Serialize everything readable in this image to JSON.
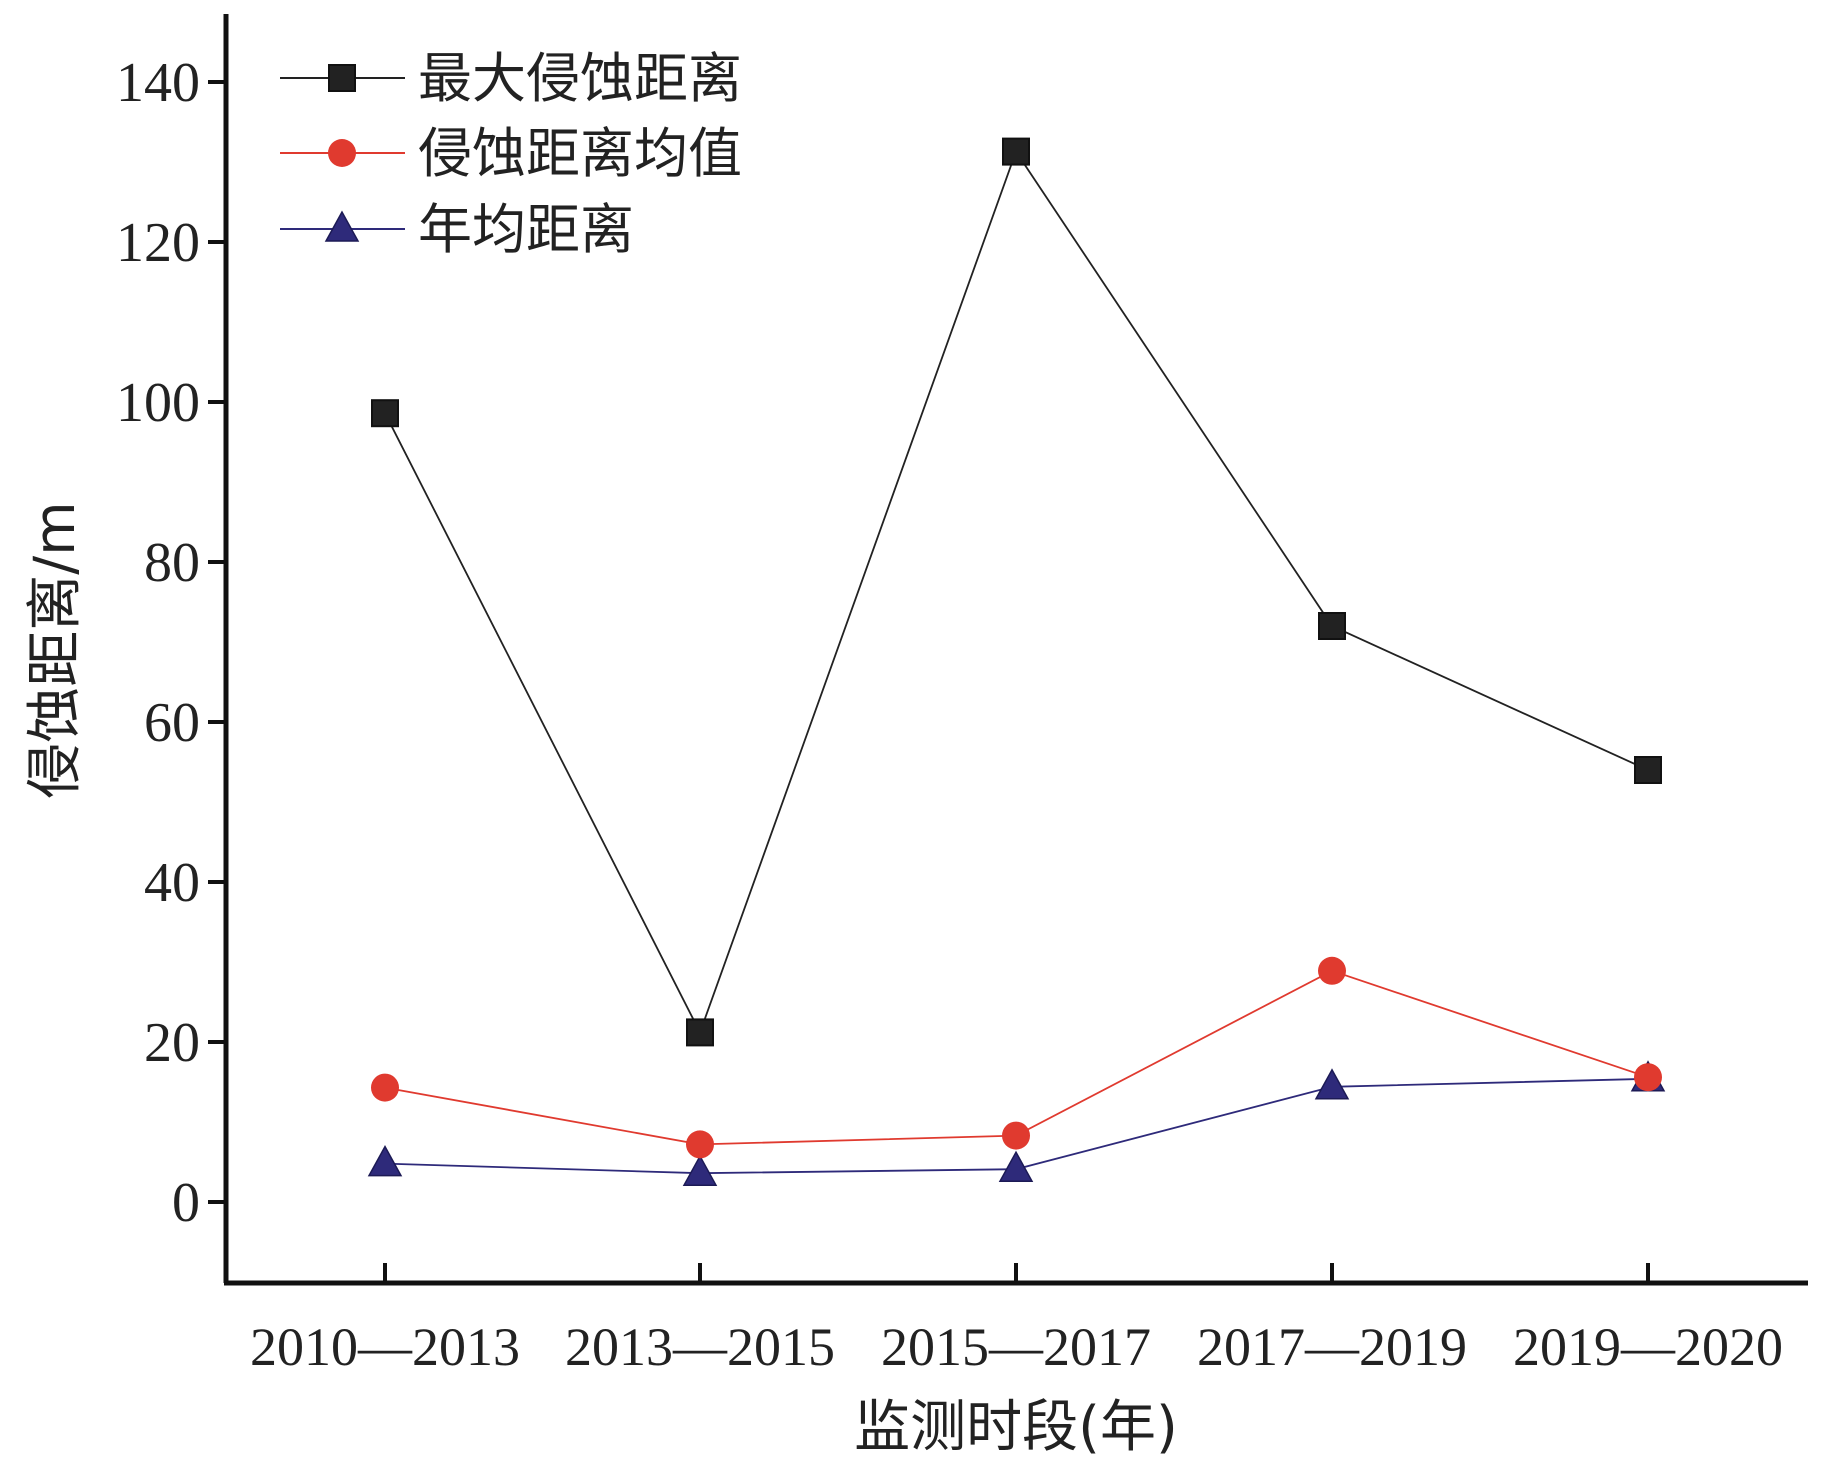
{
  "chart_data": {
    "type": "line",
    "categories": [
      "2010—2013",
      "2013—2015",
      "2015—2017",
      "2017—2019",
      "2019—2020"
    ],
    "series": [
      {
        "name": "最大侵蚀距离",
        "marker": "square",
        "color": "#222222",
        "values": [
          98.6,
          21.2,
          131.3,
          72.0,
          54.0
        ]
      },
      {
        "name": "侵蚀距离均值",
        "marker": "circle",
        "color": "#e03a2f",
        "values": [
          14.3,
          7.2,
          8.3,
          28.9,
          15.6
        ]
      },
      {
        "name": "年均距离",
        "marker": "triangle",
        "color": "#2e2a7a",
        "values": [
          4.8,
          3.6,
          4.1,
          14.4,
          15.4
        ]
      }
    ],
    "xlabel": "监测时段(年)",
    "ylabel": "侵蚀距离/m",
    "ylim": [
      -10,
      148
    ],
    "yticks": [
      0,
      20,
      40,
      60,
      80,
      100,
      120,
      140
    ],
    "legend": "top-left",
    "grid": false
  }
}
